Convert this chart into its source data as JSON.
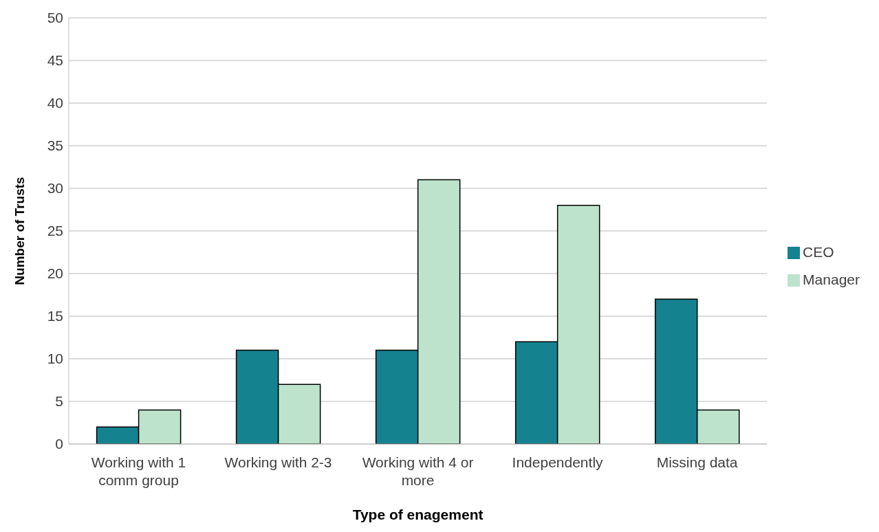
{
  "chart_data": {
    "type": "bar",
    "xlabel": "Type of enagement",
    "ylabel": "Number of Trusts",
    "categories": [
      "Working with 1 comm group",
      "Working with 2-3",
      "Working with 4 or more",
      "Independently",
      "Missing data"
    ],
    "series": [
      {
        "name": "CEO",
        "color": "#14828f",
        "values": [
          2,
          11,
          11,
          12,
          17
        ]
      },
      {
        "name": "Manager",
        "color": "#bde3cc",
        "values": [
          4,
          7,
          31,
          28,
          4
        ]
      }
    ],
    "ylim": [
      0,
      50
    ],
    "yticks": [
      0,
      5,
      10,
      15,
      20,
      25,
      30,
      35,
      40,
      45,
      50
    ],
    "grid": "y",
    "legend": "right"
  }
}
